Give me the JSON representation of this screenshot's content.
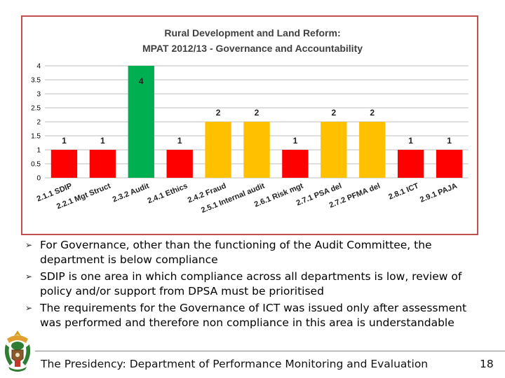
{
  "chart_data": {
    "type": "bar",
    "title_lines": [
      "Rural Development and Land Reform:",
      "MPAT 2012/13 - Governance and Accountability"
    ],
    "categories": [
      "2.1.1 SDIP",
      "2.2.1 Mgt Struct",
      "2.3.2 Audit",
      "2.4.1 Ethics",
      "2.4.2 Fraud",
      "2.5.1 Internal audit",
      "2.6.1 Risk mgt",
      "2.7.1 PSA del",
      "2.7.2 PFMA del",
      "2.8.1 ICT",
      "2.9.1 PAJA"
    ],
    "values": [
      1,
      1,
      4,
      1,
      2,
      2,
      1,
      2,
      2,
      1,
      1
    ],
    "ylim": [
      0,
      4
    ],
    "yticks": [
      "0",
      "0.5",
      "1",
      "1.5",
      "2",
      "2.5",
      "3",
      "3.5",
      "4"
    ],
    "grid": true,
    "legend": "none",
    "colors": {
      "1": "#ff0000",
      "2": "#ffc000",
      "4": "#00b050"
    },
    "gridline_color": "#bfbfbf"
  },
  "bullets": [
    {
      "text": "For Governance, other than the functioning of the Audit Committee, the department is below compliance"
    },
    {
      "text": "SDIP is one area in which compliance across all departments is low, review of policy and/or support from DPSA must be prioritised"
    },
    {
      "text": "The requirements for the Governance of ICT was issued only after assessment was performed and therefore non compliance in this area is understandable"
    }
  ],
  "bullet_glyph": "➢",
  "footer": {
    "text": "The Presidency: Department of Performance Monitoring and Evaluation",
    "page_number": "18",
    "logo_icon": "coat-of-arms-icon"
  }
}
